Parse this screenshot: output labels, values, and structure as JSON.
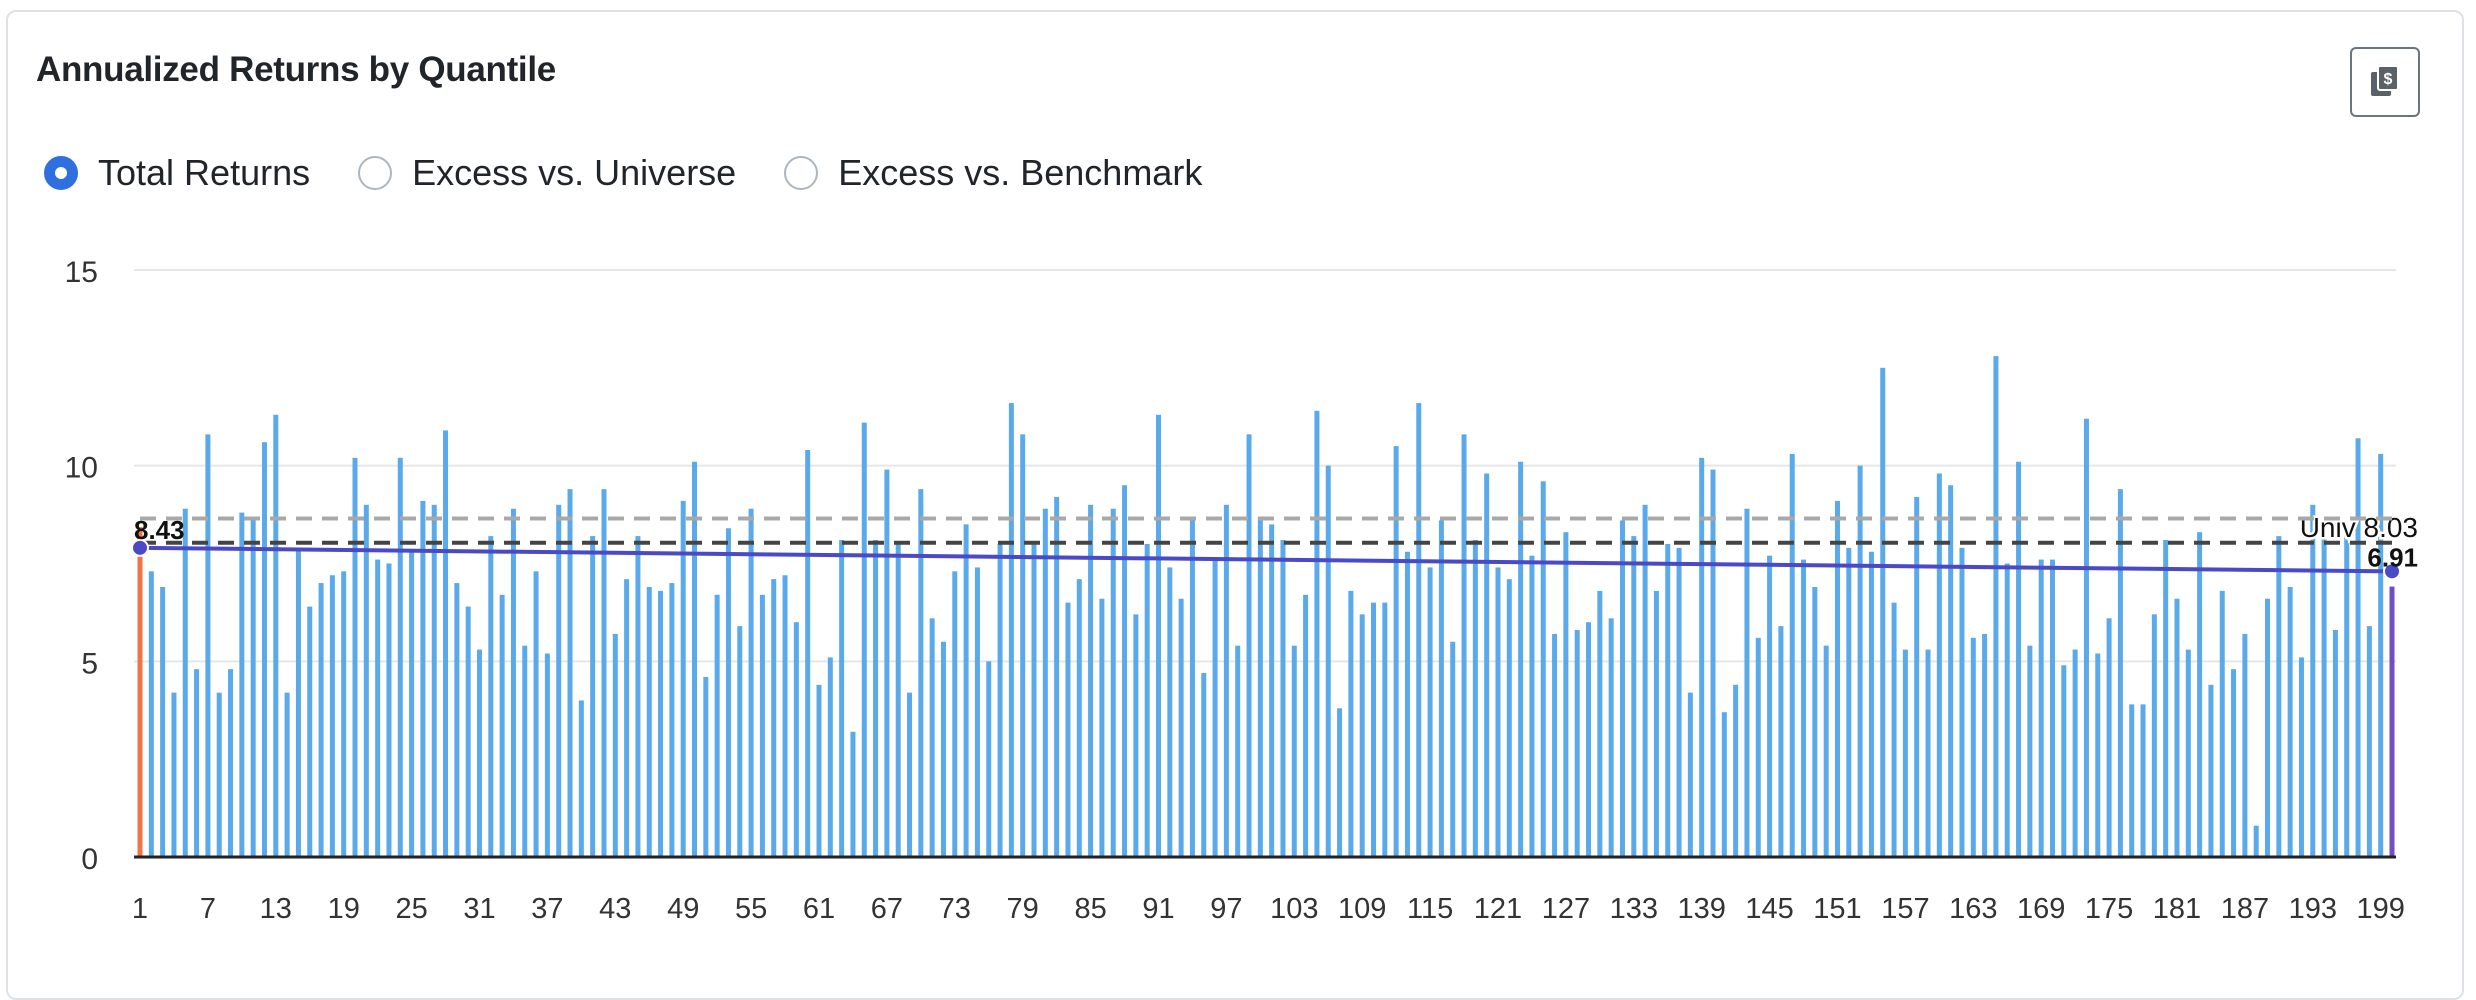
{
  "header": {
    "title": "Annualized Returns by Quantile",
    "copy_button_icon": "copy-dollar-icon"
  },
  "radios": [
    {
      "label": "Total Returns",
      "checked": true
    },
    {
      "label": "Excess vs. Universe",
      "checked": false
    },
    {
      "label": "Excess vs. Benchmark",
      "checked": false
    }
  ],
  "colors": {
    "bar": "#5aa9ea",
    "first_bar": "#f0744a",
    "last_bar": "#6f4fc2",
    "trend": "#4a49c6",
    "universe_line": "#444444",
    "benchmark_line": "#a8a8a8",
    "grid": "#e6e6e6"
  },
  "chart_data": {
    "type": "bar",
    "xlim": [
      1,
      200
    ],
    "ylim": [
      0,
      15
    ],
    "y_ticks": [
      0,
      5,
      10,
      15
    ],
    "x_ticks": [
      1,
      7,
      13,
      19,
      25,
      31,
      37,
      43,
      49,
      55,
      61,
      67,
      73,
      79,
      85,
      91,
      97,
      103,
      109,
      115,
      121,
      127,
      133,
      139,
      145,
      151,
      157,
      163,
      169,
      175,
      181,
      187,
      193,
      199
    ],
    "grid": true,
    "values": [
      8.43,
      7.3,
      6.9,
      4.2,
      8.9,
      4.8,
      10.8,
      4.2,
      4.8,
      8.8,
      8.7,
      10.6,
      11.3,
      4.2,
      7.9,
      6.4,
      7.0,
      7.2,
      7.3,
      10.2,
      9.0,
      7.6,
      7.5,
      10.2,
      7.8,
      9.1,
      9.0,
      10.9,
      7.0,
      6.4,
      5.3,
      8.2,
      6.7,
      8.9,
      5.4,
      7.3,
      5.2,
      9.0,
      9.4,
      4.0,
      8.2,
      9.4,
      5.7,
      7.1,
      8.2,
      6.9,
      6.8,
      7.0,
      9.1,
      10.1,
      4.6,
      6.7,
      8.4,
      5.9,
      8.9,
      6.7,
      7.1,
      7.2,
      6.0,
      10.4,
      4.4,
      5.1,
      8.1,
      3.2,
      11.1,
      8.1,
      9.9,
      8.0,
      4.2,
      9.4,
      6.1,
      5.5,
      7.3,
      8.5,
      7.4,
      5.0,
      8.0,
      11.6,
      10.8,
      8.0,
      8.9,
      9.2,
      6.5,
      7.1,
      9.0,
      6.6,
      8.9,
      9.5,
      6.2,
      8.0,
      11.3,
      7.4,
      6.6,
      8.6,
      4.7,
      7.6,
      9.0,
      5.4,
      10.8,
      8.7,
      8.5,
      8.1,
      5.4,
      6.7,
      11.4,
      10.0,
      3.8,
      6.8,
      6.2,
      6.5,
      6.5,
      10.5,
      7.8,
      11.6,
      7.4,
      8.6,
      5.5,
      10.8,
      8.1,
      9.8,
      7.4,
      7.1,
      10.1,
      7.7,
      9.6,
      5.7,
      8.3,
      5.8,
      6.0,
      6.8,
      6.1,
      8.6,
      8.2,
      9.0,
      6.8,
      8.0,
      7.9,
      4.2,
      10.2,
      9.9,
      3.7,
      4.4,
      8.9,
      5.6,
      7.7,
      5.9,
      10.3,
      7.6,
      6.9,
      5.4,
      9.1,
      7.9,
      10.0,
      7.8,
      12.5,
      6.5,
      5.3,
      9.2,
      5.3,
      9.8,
      9.5,
      7.9,
      5.6,
      5.7,
      12.8,
      7.5,
      10.1,
      5.4,
      7.6,
      7.6,
      4.9,
      5.3,
      11.2,
      5.2,
      6.1,
      9.4,
      3.9,
      3.9,
      6.2,
      8.1,
      6.6,
      5.3,
      8.3,
      4.4,
      6.8,
      4.8,
      5.7,
      0.8,
      6.6,
      8.2,
      6.9,
      5.1,
      9.0,
      8.3,
      5.8,
      8.2,
      10.7,
      5.9,
      10.3,
      6.91
    ],
    "trend": {
      "start": 7.9,
      "end": 7.3
    },
    "reference_lines": [
      {
        "label": "Univ 8.03",
        "value": 8.03
      },
      {
        "value": 8.65
      }
    ],
    "annotations": [
      {
        "text": "8.43",
        "x": 1
      },
      {
        "text": "6.91",
        "x": 200
      }
    ]
  }
}
